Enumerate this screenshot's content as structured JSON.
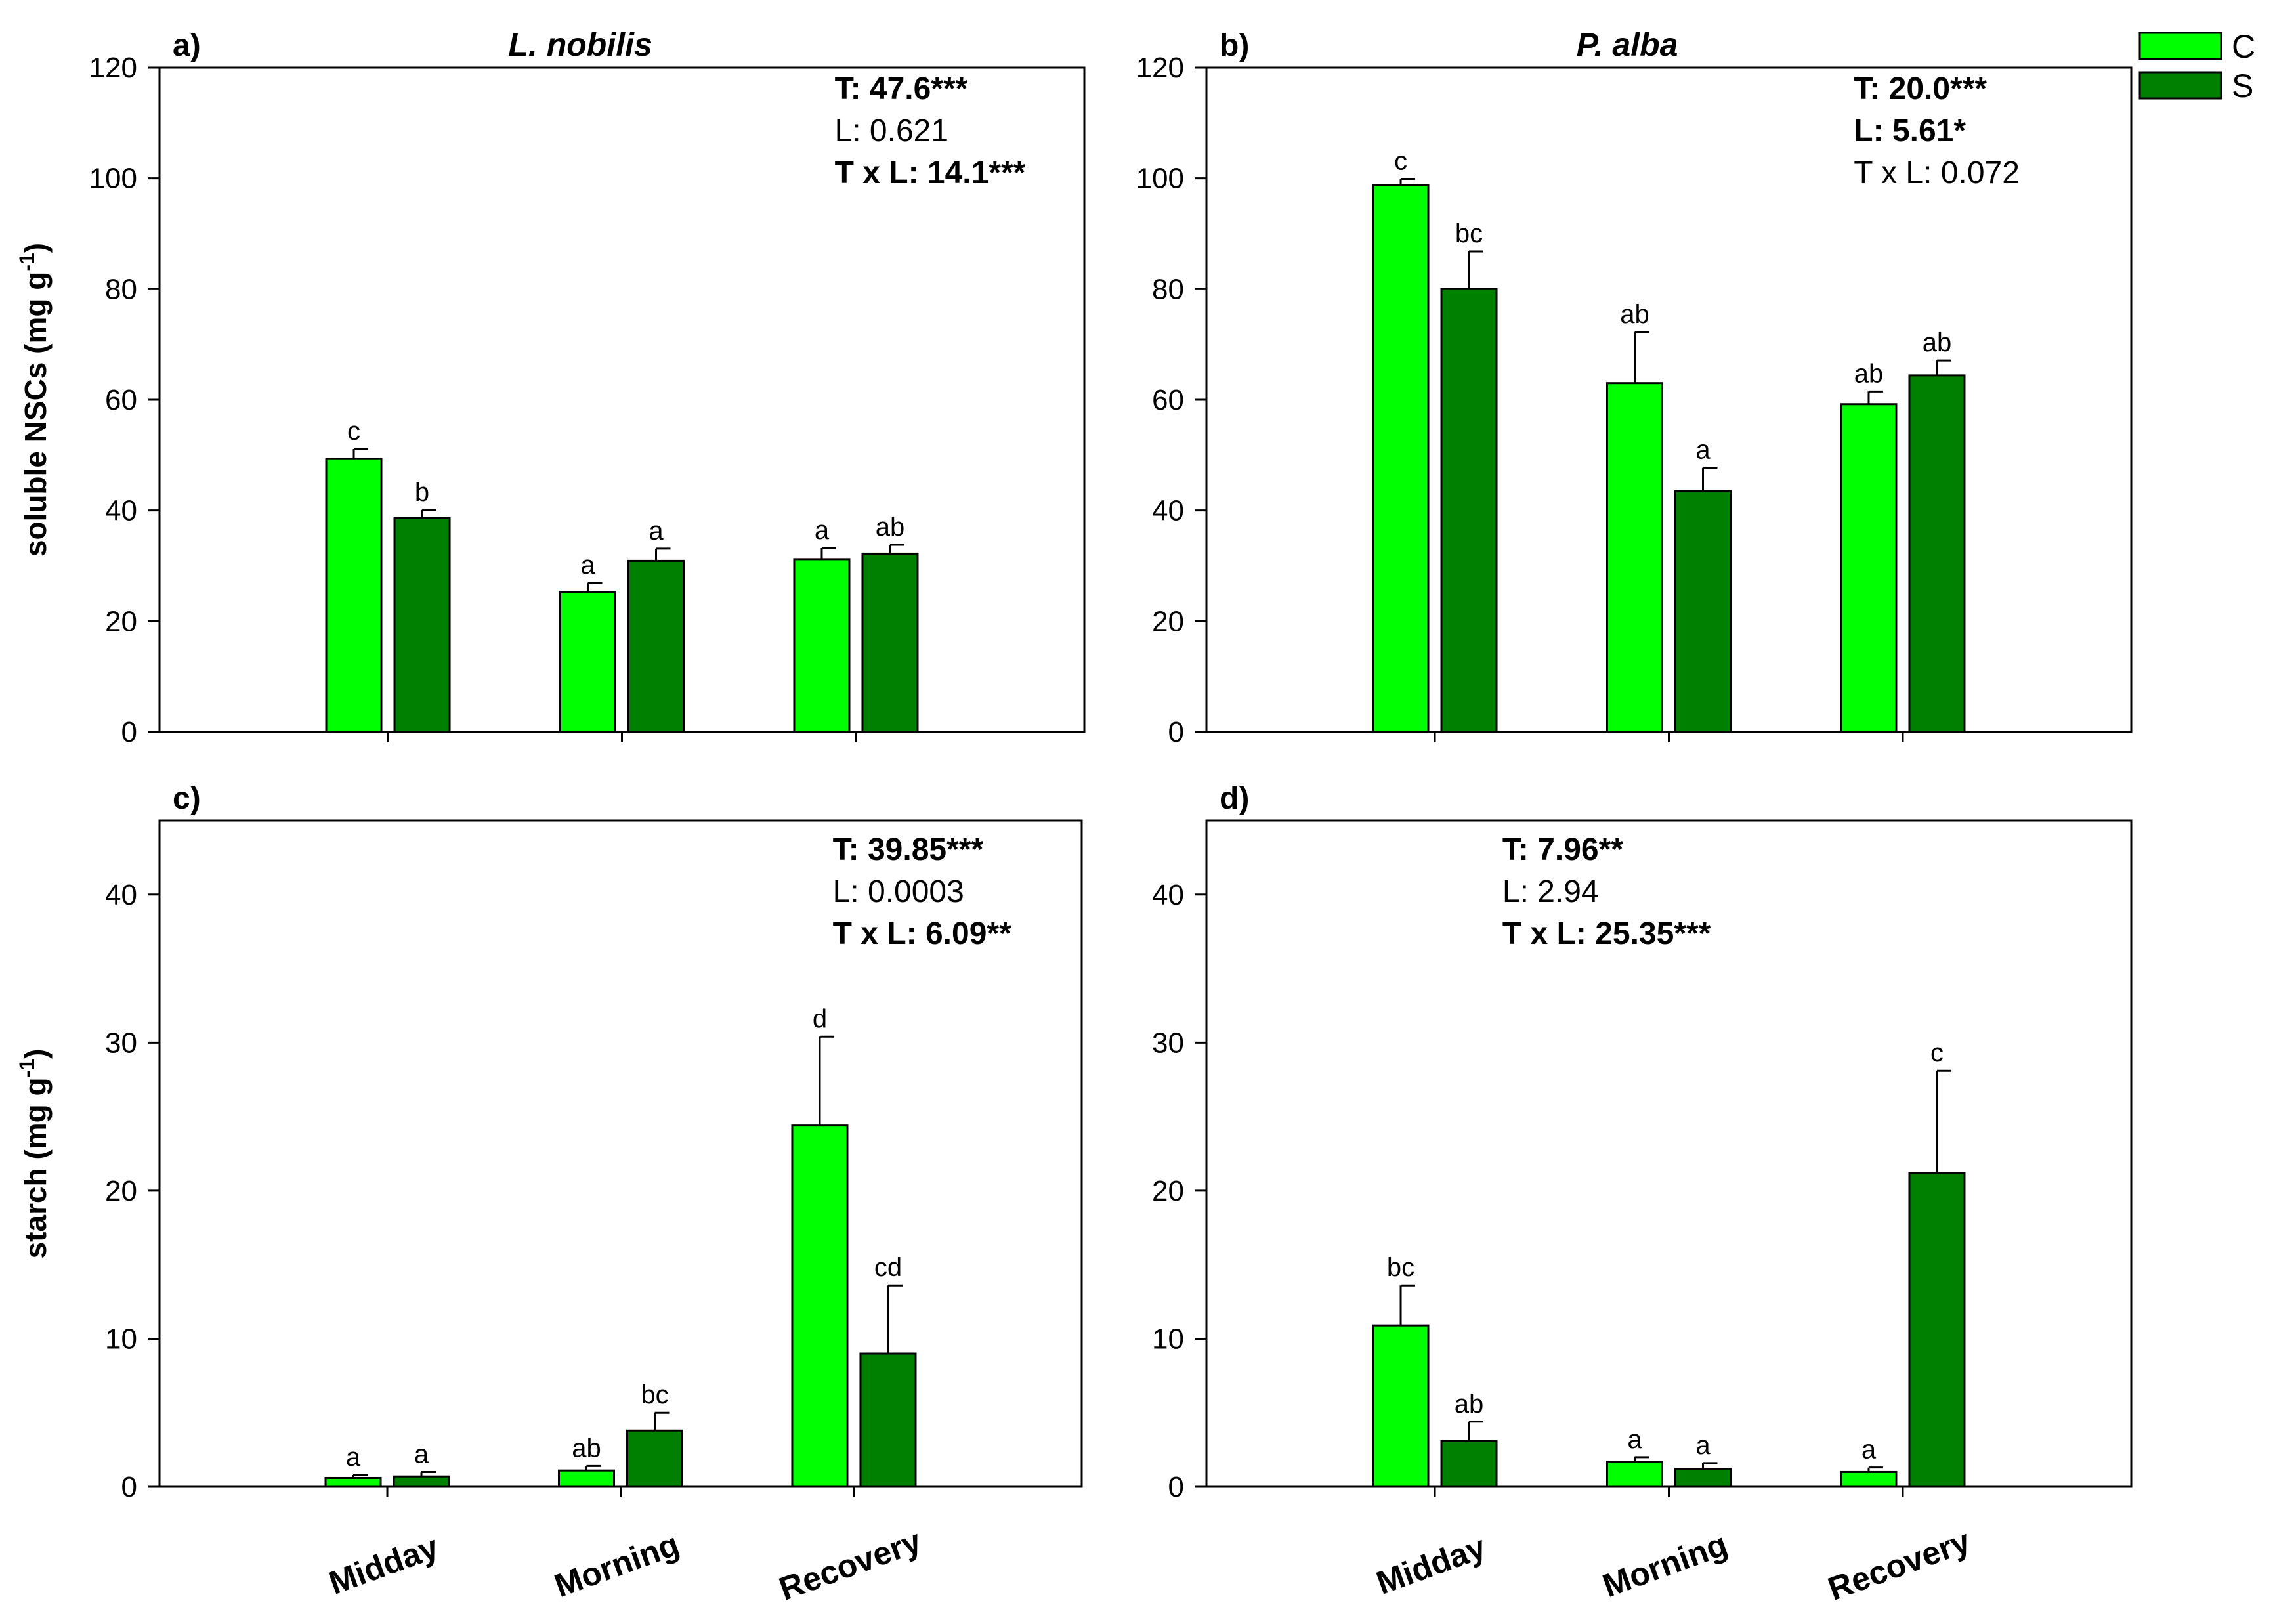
{
  "legend": {
    "items": [
      {
        "label": "C",
        "color": "#00ff00"
      },
      {
        "label": "S",
        "color": "#008000"
      }
    ]
  },
  "chart_data": [
    {
      "type": "bar",
      "panel_label": "a)",
      "title": "L. nobilis",
      "ylabel": "soluble NSCs (mg g",
      "ylabel_sup": "-1",
      "ylabel_close": ")",
      "ylim": [
        0,
        120
      ],
      "yticks": [
        0,
        20,
        40,
        60,
        80,
        100,
        120
      ],
      "categories": [
        "Midday",
        "Morning",
        "Recovery"
      ],
      "series": [
        {
          "name": "C",
          "values": [
            49.3,
            25.3,
            31.2
          ],
          "errors": [
            1.8,
            1.6,
            2.0
          ],
          "letters": [
            "c",
            "a",
            "a"
          ]
        },
        {
          "name": "S",
          "values": [
            38.6,
            30.9,
            32.2
          ],
          "errors": [
            1.5,
            2.2,
            1.6
          ],
          "letters": [
            "b",
            "a",
            "ab"
          ]
        }
      ],
      "stats": [
        {
          "text": "T: 47.6***",
          "bold": true
        },
        {
          "text": "L: 0.621",
          "bold": false
        },
        {
          "text": "T x L: 14.1***",
          "bold": true
        }
      ]
    },
    {
      "type": "bar",
      "panel_label": "b)",
      "title": "P. alba",
      "ylabel": "",
      "ylim": [
        0,
        120
      ],
      "yticks": [
        0,
        20,
        40,
        60,
        80,
        100,
        120
      ],
      "categories": [
        "Midday",
        "Morning",
        "Recovery"
      ],
      "series": [
        {
          "name": "C",
          "values": [
            98.8,
            63.0,
            59.2
          ],
          "errors": [
            1.1,
            9.2,
            2.3
          ],
          "letters": [
            "c",
            "ab",
            "ab"
          ]
        },
        {
          "name": "S",
          "values": [
            80.0,
            43.5,
            64.4
          ],
          "errors": [
            6.8,
            4.2,
            2.7
          ],
          "letters": [
            "bc",
            "a",
            "ab"
          ]
        }
      ],
      "stats": [
        {
          "text": "T: 20.0***",
          "bold": true
        },
        {
          "text": "L: 5.61*",
          "bold": true
        },
        {
          "text": "T x L: 0.072",
          "bold": false
        }
      ]
    },
    {
      "type": "bar",
      "panel_label": "c)",
      "title": "",
      "ylabel": "starch (mg g",
      "ylabel_sup": "-1",
      "ylabel_close": ")",
      "ylim": [
        0,
        45
      ],
      "yticks": [
        0,
        10,
        20,
        30,
        40
      ],
      "categories": [
        "Midday",
        "Morning",
        "Recovery"
      ],
      "series": [
        {
          "name": "C",
          "values": [
            0.6,
            1.1,
            24.4
          ],
          "errors": [
            0.2,
            0.3,
            6.0
          ],
          "letters": [
            "a",
            "ab",
            "d"
          ]
        },
        {
          "name": "S",
          "values": [
            0.7,
            3.8,
            9.0
          ],
          "errors": [
            0.3,
            1.2,
            4.6
          ],
          "letters": [
            "a",
            "bc",
            "cd"
          ]
        }
      ],
      "stats": [
        {
          "text": "T: 39.85***",
          "bold": true
        },
        {
          "text": "L: 0.0003",
          "bold": false
        },
        {
          "text": "T x L: 6.09**",
          "bold": true
        }
      ]
    },
    {
      "type": "bar",
      "panel_label": "d)",
      "title": "",
      "ylabel": "",
      "ylim": [
        0,
        45
      ],
      "yticks": [
        0,
        10,
        20,
        30,
        40
      ],
      "categories": [
        "Midday",
        "Morning",
        "Recovery"
      ],
      "series": [
        {
          "name": "C",
          "values": [
            10.9,
            1.7,
            1.0
          ],
          "errors": [
            2.7,
            0.3,
            0.3
          ],
          "letters": [
            "bc",
            "a",
            "a"
          ]
        },
        {
          "name": "S",
          "values": [
            3.1,
            1.2,
            21.2
          ],
          "errors": [
            1.3,
            0.4,
            6.9
          ],
          "letters": [
            "ab",
            "a",
            "c"
          ]
        }
      ],
      "stats": [
        {
          "text": "T: 7.96**",
          "bold": true
        },
        {
          "text": "L: 2.94",
          "bold": false
        },
        {
          "text": "T x L: 25.35***",
          "bold": true
        }
      ]
    }
  ]
}
